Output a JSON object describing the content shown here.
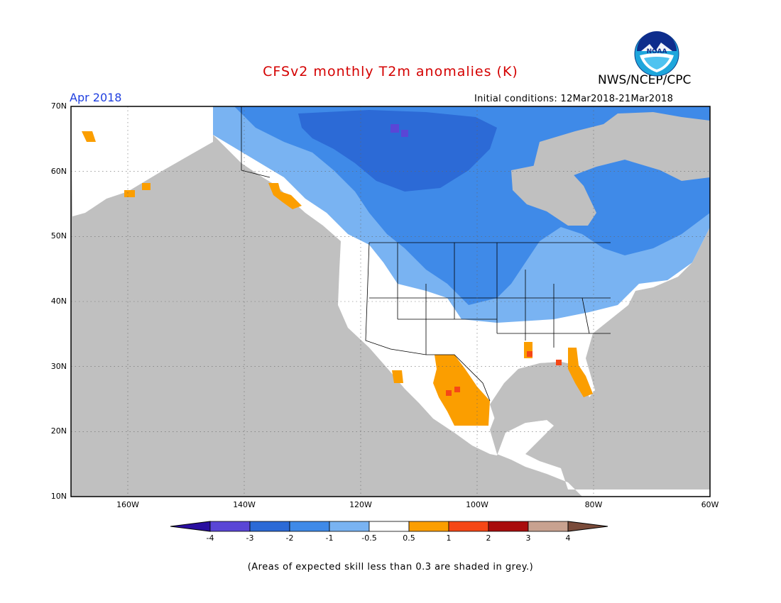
{
  "header": {
    "title": "CFSv2 monthly T2m anomalies (K)",
    "agency": "NWS/NCEP/CPC",
    "period": "Apr 2018",
    "initial_conditions": "Initial conditions: 12Mar2018-21Mar2018",
    "logo_text": "NOAA"
  },
  "map": {
    "lat_labels": [
      "70N",
      "60N",
      "50N",
      "40N",
      "30N",
      "20N",
      "10N"
    ],
    "lon_labels": [
      "160W",
      "140W",
      "120W",
      "100W",
      "80W",
      "60W"
    ],
    "land_color": "#ffffff",
    "ocean_color": "#c0c0c0",
    "regions": [
      {
        "name": "canada-cold-core",
        "anomaly": -2
      },
      {
        "name": "canada-cold-core-deep",
        "anomaly": -3
      },
      {
        "name": "northern-plains-cold",
        "anomaly": -1
      },
      {
        "name": "mexico-warm",
        "anomaly": 0.5
      },
      {
        "name": "florida-warm",
        "anomaly": 0.5
      }
    ]
  },
  "colorbar": {
    "labels": [
      "-4",
      "-3",
      "-2",
      "-1",
      "-0.5",
      "0.5",
      "1",
      "2",
      "3",
      "4"
    ],
    "colors": [
      "#2a0fa0",
      "#5a46d6",
      "#2c6ad6",
      "#3f8ae8",
      "#79b3f2",
      "#ffffff",
      "#fb9e00",
      "#f54716",
      "#a90d0d",
      "#c8a290",
      "#7a4b3a"
    ]
  },
  "footnote": "(Areas of expected skill less than 0.3 are shaded in grey.)"
}
